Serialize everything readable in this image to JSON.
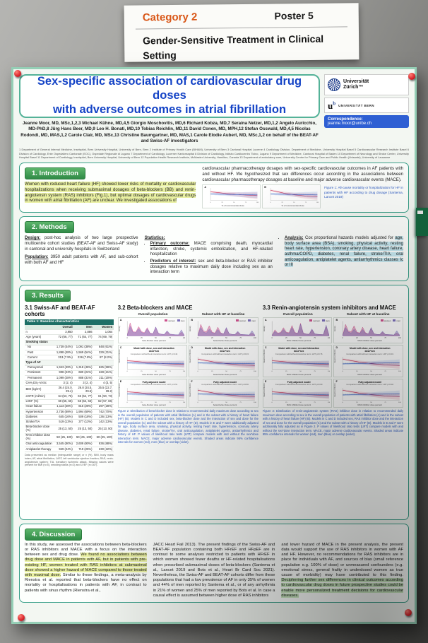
{
  "sign": {
    "category": "Category 2",
    "poster_no": "Poster 5",
    "title": "Gender-Sensitive Treatment in Clinical Setting"
  },
  "poster": {
    "header": {
      "title_line1": "Sex-specific association of cardiovascular drug doses",
      "title_line2": "with adverse outcomes in atrial fibrillation",
      "authors": "Jeanne Moor, MD, MSc,1,2,3 Michael Kühne, MD,4,5 Giorgio Moschovitis, MD,6 Richard Kobza, MD,7 Seraina Netzer, MD,1,2 Angelo Auricchio, MD-PhD,8 Jürg Hans Beer, MD,9 Leo H. Bonati, MD,10 Tobias Reichlin, MD,11 David Conen, MD, MPH,12 Stefan Osswald, MD,4,5 Nicolas Rodondi, MD, MAS,1,2 Carole Clair, MD, MSc,13 Christine Baumgartner, MD, MAS,1 Carole Elodie Aubert, MD, MSc,1,2 on behalf of the BEAT-AF and Swiss-AF investigators",
      "affiliations": "1 Department of General Internal Medicine, Inselspital, Bern University Hospital, University of Bern, Bern 2 Institute of Primary Health Care (BIHAM), University of Bern 3 Cantonal Hospital Lucerne 4 Cardiology Division, Department of Medicine, University Hospital Basel 5 Cardiovascular Research Institute Basel 6 Division of Cardiology, Ente Ospedaliero Cantonale (EOC), Ospedale Regionale di Lugano 7 Department of Cardiology, Luzerner Kantonsspital 8 Division of Cardiology, Istituto Cardiocentro Ticino, Lugano 9 Department of Medicine, Cantonal Hospital of Baden 10 Department of Neurology and Stroke Center, University Hospital Basel 11 Department of Cardiology, Inselspital, Bern University Hospital, University of Bern 12 Population Health Research Institute, McMaster University, Hamilton, Canada 13 Department of ambulatory care, University Centre for Primary Care and Public Health (Unisanté), University of Lausanne",
      "uzh_line1": "Universität",
      "uzh_line2": "Zürich™",
      "bern_u": "u",
      "bern_b": "b",
      "bern_caption": "UNIVERSITÄT BERN",
      "correspondence_label": "Correspondence:",
      "correspondence_email": "jeanne.moor@unibe.ch"
    },
    "intro": {
      "heading": "1. Introduction",
      "col1": "Women with reduced heart failure (HF) showed lower risks of mortality or cardiovascular hospitalizations when receiving submaximal dosages of beta-blockers (BB) and renin-angiotensin system (RAS) inhibitors (Fig.1), but optimal dosages of cardiovascular drugs in women with atrial fibrillation (AF) are unclear. We investigated associations of",
      "col2": "cardiovascular pharmacotherapy dosages with sex-specific cardiovascular outcomes in AF patients with and without HF. We hypothesized that sex differences occur according in the associations between cardiovascular pharmacotherapy dosages at baseline and major adverse cardiovascular events (MACE).",
      "fig1_caption": "Figure 1: All-cause mortality or hospitalization for HF in patients with HF according to drug dosage (Santema, Lancet 2019)",
      "fig1_xlabel": "% of recommended dose",
      "fig1_panels": [
        {
          "label": "A",
          "type": "hr",
          "series": [
            "hrDownW",
            "hrFlatM"
          ],
          "ylab": ""
        },
        {
          "label": "B",
          "type": "hr",
          "series": [
            "hrDownSteepW",
            "hrFlatM"
          ],
          "ylab": ""
        }
      ]
    },
    "methods": {
      "heading": "2. Methods",
      "design_label": "Design:",
      "design_text": "post-hoc analysis of two large prospective multicentre cohort studies (BEAT-AF and Swiss-AF study) in cantonal and university hospitals in Switzerland",
      "population_label": "Population:",
      "population_text": "3950 adult patients with AF, and sub-cohort with both AF and HF",
      "statistics_label": "Statistics:",
      "bullet1_label": "Primary outcome:",
      "bullet1_text": "MACE comprising death, myocardial infarction, stroke, systemic embolization, and HF-related hospitalization",
      "bullet2_label": "Predictors of interest:",
      "bullet2_text": "sex and beta-blocker or RAS inhibitor dosages relative to maximum daily dose including sex as an interaction term",
      "bullet3_label": "Analysis:",
      "bullet3_text": "Cox proportional hazards models adjusted for",
      "bullet3_highlight": "age, body surface area (BSA), smoking, physical activity, resting heart rate, hypertension, coronary artery disease, heart failure, asthma/COPD, diabetes, renal failure, stroke/TIA, oral anticoagulation, antiplatelet agents, antiarrhythmics classes Ic or III"
    },
    "results": {
      "heading": "3. Results",
      "col_titles": [
        "Overall population",
        "Subset with HF at baseline"
      ],
      "sub1": {
        "heading": "3.1 Swiss-AF and BEAT-AF cohorts",
        "table": {
          "title": "Table 1: Baseline characteristics",
          "cols": [
            "",
            "Overall",
            "Men",
            "Women"
          ],
          "rows": [
            [
              "n",
              "3,950",
              "2,886",
              "1,064"
            ],
            [
              "Age (years)",
              "72 (66, 77)",
              "71 (64, 77)",
              "74 (69, 79)"
            ],
            [
              "Smoking status",
              "",
              "",
              ""
            ],
            [
              "  No",
              "1,739 (44%)",
              "1,091 (38%)",
              "648 (61%)"
            ],
            [
              "  Past",
              "1,898 (48%)",
              "1,569 (54%)",
              "329 (31%)"
            ],
            [
              "  Current",
              "313 (7.9%)",
              "226 (7.8%)",
              "87 (8.2%)"
            ],
            [
              "Type of AF",
              "",
              "",
              ""
            ],
            [
              "  Paroxysmal",
              "1,943 (49%)",
              "1,318 (46%)",
              "625 (59%)"
            ],
            [
              "  Persistent",
              "908 (23%)",
              "680 (24%)",
              "228 (21%)"
            ],
            [
              "  Permanent",
              "1,099 (28%)",
              "888 (31%)",
              "211 (20%)"
            ],
            [
              "CHA₂DS₂-VASc",
              "3 (2, 4)",
              "3 (2, 4)",
              "4 (3, 5)"
            ],
            [
              "BMI (kg/m²)",
              "26.4 (24.0, 29.4)",
              "26.8 (24.5, 29.6)",
              "25.5 (22.7, 29.2)"
            ],
            [
              "eGFR (ml/min)",
              "64 (53, 76)",
              "65 (54, 77)",
              "61 (50, 73)"
            ],
            [
              "LVEF (%)",
              "60 (55, 65)",
              "58 (52, 63)",
              "62 (57, 66)"
            ],
            [
              "Heart failure",
              "1,113 (28%)",
              "816 (28%)",
              "297 (28%)"
            ],
            [
              "Hypertension",
              "2,736 (69%)",
              "1,994 (69%)",
              "742 (70%)"
            ],
            [
              "Diabetes",
              "645 (16%)",
              "509 (18%)",
              "136 (13%)"
            ],
            [
              "Stroke/TIA",
              "519 (13%)",
              "377 (13%)",
              "142 (13%)"
            ],
            [
              "Beta-blocker dose (%)",
              "25 (13, 50)",
              "25 (13, 50)",
              "25 (13, 50)"
            ],
            [
              "RAS inhibitor dose (%)",
              "50 (25, 100)",
              "50 (25, 100)",
              "50 (25, 100)"
            ],
            [
              "Oral anticoagulation",
              "3,545 (90%)",
              "2,609 (90%)",
              "936 (88%)"
            ],
            [
              "Antiplatelet therapy",
              "949 (24%)",
              "719 (25%)",
              "230 (22%)"
            ]
          ]
        },
        "footnote": "Data presented as median (interquartile range) or n (%). BMI, body mass index; AF, atrial fibrillation; LVEF, left ventricular ejection fraction; RAS, renin-angiotensin system; TIA, transitory ischemic attack. Missing values were present for BMI (n=5), smoking status (n=2) and LVEF (n=167)."
      },
      "sub2": {
        "heading": "3.2 Beta-blockers and MACE",
        "xlabel": "beta-blocker dose percent",
        "panels": [
          {
            "label": "A",
            "type": "density",
            "legend": [
              "women",
              "men"
            ],
            "series": [
              "densW",
              "densM"
            ]
          },
          {
            "label": "B",
            "type": "density",
            "legend": [
              "women",
              "men"
            ],
            "series": [
              "densWH",
              "densMH"
            ]
          },
          {
            "label": "C",
            "type": "hr",
            "title": "Model with dose, sex and interaction dose*sex",
            "sub": "Comparison with/without interaction term: LRT p=0.44",
            "series": [
              "hrDownW",
              "hrFlatM"
            ]
          },
          {
            "label": "D",
            "type": "hr",
            "title": "Model with dose, sex and interaction dose*sex",
            "sub": "Comparison with/without interaction term: LRT p=0.93",
            "series": [
              "hrDownSteepW",
              "hrFlatM"
            ]
          },
          {
            "label": "E",
            "type": "hr",
            "title": "Fully adjusted model",
            "sub": "Comparison with/without interaction term: LRT p=0.51",
            "series": [
              "hrDownW",
              "hrFlatM"
            ]
          },
          {
            "label": "F",
            "type": "hr",
            "title": "Fully adjusted model",
            "sub": "Comparison with/without interaction term: LRT p=0.86",
            "series": [
              "hrDownSteepW",
              "hrFlatM"
            ]
          }
        ],
        "caption": "Figure 2: Distribution of beta-blocker dose in relation to recommended daily maximum dose according to sex in the overall population of patients with atrial fibrillation (A) and in the subset with a history of heart failure (HF) (B). Models in C and D included sex, beta-blocker dose and the interaction of sex and dose for the overall population (C) and the subset with a history of HF (D). Models in E and F were additionally adjusted for age, body surface area, smoking, physical activity, resting heart rate, hypertension, coronary artery disease, diabetes, renal failure, stroke/TIA, oral anticoagulation, antiplatelet agents, antiarrhythmics and history of HF. P values of likelihood ratio tests (LRT) compare models with and without the sex*dose interaction term. MACE, major adverse cardiovascular events. Shaded areas indicate 95% confidence intervals for women (red), men (blue) or overlap (violet)."
      },
      "sub3": {
        "heading": "3.3 Renin-angiotensin system inhibitors and MACE",
        "xlabel": "RAS inhibitor dose percent",
        "panels": [
          {
            "label": "A",
            "type": "density",
            "legend": [
              "women",
              "men"
            ],
            "series": [
              "densWR",
              "densMR"
            ]
          },
          {
            "label": "B",
            "type": "density",
            "legend": [
              "women",
              "men"
            ],
            "series": [
              "densWH",
              "densMH"
            ]
          },
          {
            "label": "C",
            "type": "hr",
            "title": "Model with dose, sex and interaction dose*sex",
            "sub": "Comparison with/without interaction term: LRT p=0.76",
            "series": [
              "hrDownW",
              "hrFlatM"
            ]
          },
          {
            "label": "D",
            "type": "hr",
            "title": "Model with dose, sex and interaction dose*sex",
            "sub": "Comparison with/without interaction term: LRT p=0.01",
            "series": [
              "hrDownSteepW",
              "hrUpM"
            ]
          },
          {
            "label": "E",
            "type": "hr",
            "title": "Fully adjusted model",
            "sub": "Comparison with/without interaction term: LRT p=0.60",
            "series": [
              "hrDownW",
              "hrFlatM"
            ]
          },
          {
            "label": "F",
            "type": "hr",
            "title": "Fully adjusted model",
            "sub": "Comparison with/without interaction term: LRT p=0.02",
            "series": [
              "hrDownSteepW",
              "hrUpM"
            ]
          }
        ],
        "caption": "Figure 3: Distribution of renin-angiotensin system (RAS) inhibitor dose in relation to recommended daily maximum dose according to sex in the overall population of patients with atrial fibrillation (A) and in the subset with a history of heart failure (HF) (B). Models in C and D included sex, RAS inhibitor dose and the interaction of sex and dose for the overall population (C) and the subset with a history of HF (D). Models in E and F were additionally fully adjusted as in Figure 2. P values of likelihood ratio tests (LRT) compare models with and without the sex*dose interaction term. MACE, major adverse cardiovascular events. Shaded areas indicate 95% confidence intervals for women (red), men (blue) or overlap (violet)."
      }
    },
    "discussion": {
      "heading": "4. Discussion",
      "col1_plain": "In this study, we assessed the associations between beta-blockers or RAS inhibitors and MACE with a focus on the interaction between sex and drug dose. ",
      "col1_highlight": "We found no associations between drug dose and MACE in patients with AF, but in patients with pre-existing HF, women treated with RAS inhibitors at submaximal dose showed a higher hazard of MACE compared to those treated with maximal dose.",
      "col1_rest": " Similar to these findings, a meta-analysis by Rienstra et al. reported that beta-blockers have no effect on mortality or hospitalisations in patients with AF, in contrast to patients with sinus rhythm (Rienstra et al.,",
      "col2": "JACC Heart Fail 2013). The present findings of the Swiss-AF and BEAT-AF population containing both HFrEF and HFpEF are in contrast to some analyses restricted to patients with HFrEF in which women showed fewer deaths or HF-related hospitalisations when prescribed submaximal doses of beta-blockers (Santema et al., Lancet 2019 and Bots et al., Heart Br Card Soc 2021). Nevertheless, the Swiss-AF and BEAT-AF cohorts differ from these populations that had a low prevalence of AF in only 35% of women and 44% of men reported by Santema et al., or of any arrhythmia in 21% of women and 25% of men reported by Bots et al. In case a causal effect is assumed between higher dose of RAS inhibitors",
      "col3_plain": "and lower hazard of MACE in the present analysis, the present data would support the use of RAS inhibitors in women with AF and HF. However, no recommendations for RAS inhibitors are in place for individuals with AF, and sources of bias (small reference population e.g. 100% of dose) or unmeasured confounders (e.g. emotional stress, general frailty in underdosed women as true cause of morbidity) may have contributed to this finding. ",
      "col3_highlight": "Deciphering further sex differences in clinical outcomes according to cardiovascular drug doses in future prospective studies could be enable more personalized treatment decisions for cardiovascular diseases."
    }
  },
  "labels": {
    "hr_ylabel": "hazard of MACE",
    "density_ylabel": "density",
    "xticks": [
      "0",
      "25",
      "50",
      "75",
      "100"
    ]
  },
  "chart_style": {
    "density": [
      "#d0528f",
      "#7f72bf"
    ],
    "hr": [
      "#c92f56",
      "#3563c9"
    ]
  },
  "curves": {
    "densW": [
      2,
      88,
      28,
      24,
      62,
      28,
      20,
      55,
      18,
      14,
      58,
      16,
      10,
      8,
      28,
      8,
      6,
      5,
      5,
      24,
      3
    ],
    "densM": [
      2,
      64,
      22,
      20,
      48,
      22,
      16,
      46,
      16,
      12,
      60,
      14,
      10,
      9,
      34,
      11,
      9,
      7,
      6,
      40,
      4
    ],
    "densWH": [
      2,
      78,
      32,
      28,
      68,
      24,
      18,
      58,
      20,
      12,
      50,
      14,
      9,
      7,
      24,
      7,
      6,
      5,
      4,
      18,
      3
    ],
    "densMH": [
      2,
      56,
      24,
      18,
      44,
      20,
      15,
      42,
      16,
      11,
      56,
      13,
      9,
      8,
      30,
      9,
      8,
      7,
      5,
      34,
      4
    ],
    "densWR": [
      2,
      40,
      18,
      22,
      55,
      24,
      20,
      70,
      22,
      16,
      85,
      18,
      12,
      10,
      40,
      12,
      9,
      8,
      7,
      60,
      5
    ],
    "densMR": [
      2,
      30,
      14,
      18,
      42,
      20,
      16,
      55,
      18,
      14,
      78,
      16,
      11,
      9,
      46,
      13,
      10,
      8,
      7,
      72,
      6
    ],
    "hrFlatM": [
      52,
      52,
      51,
      51,
      50,
      50,
      50,
      49,
      49,
      49,
      48,
      48,
      48,
      47,
      47,
      47,
      46,
      46,
      46,
      45,
      45
    ],
    "hrDownW": [
      70,
      68,
      66,
      64,
      62,
      60,
      58,
      56,
      54,
      52,
      51,
      49,
      48,
      46,
      45,
      44,
      43,
      42,
      41,
      40,
      39
    ],
    "hrDownSteepW": [
      82,
      78,
      74,
      70,
      66,
      62,
      58,
      55,
      52,
      49,
      46,
      44,
      42,
      40,
      38,
      36,
      35,
      34,
      33,
      32,
      31
    ],
    "hrUpM": [
      44,
      45,
      45,
      46,
      46,
      47,
      47,
      48,
      48,
      49,
      49,
      50,
      50,
      51,
      51,
      52,
      52,
      53,
      53,
      54,
      54
    ]
  }
}
